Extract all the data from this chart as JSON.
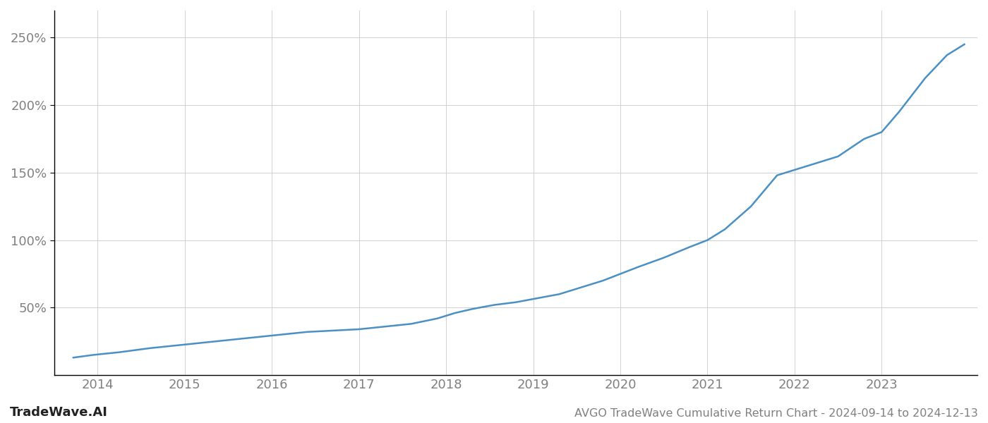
{
  "title": "AVGO TradeWave Cumulative Return Chart - 2024-09-14 to 2024-12-13",
  "watermark": "TradeWave.AI",
  "line_color": "#4a90c4",
  "line_width": 1.8,
  "background_color": "#ffffff",
  "grid_color": "#d0d0d0",
  "spine_color": "#000000",
  "x_years": [
    2014,
    2015,
    2016,
    2017,
    2018,
    2019,
    2020,
    2021,
    2022,
    2023
  ],
  "x_values": [
    2013.72,
    2013.95,
    2014.25,
    2014.6,
    2014.9,
    2015.2,
    2015.5,
    2015.8,
    2016.1,
    2016.4,
    2016.7,
    2017.0,
    2017.3,
    2017.6,
    2017.9,
    2018.1,
    2018.3,
    2018.55,
    2018.8,
    2019.05,
    2019.3,
    2019.55,
    2019.8,
    2020.0,
    2020.2,
    2020.5,
    2020.8,
    2021.0,
    2021.2,
    2021.5,
    2021.8,
    2022.0,
    2022.2,
    2022.5,
    2022.8,
    2023.0,
    2023.2,
    2023.5,
    2023.75,
    2023.95
  ],
  "y_values": [
    13,
    15,
    17,
    20,
    22,
    24,
    26,
    28,
    30,
    32,
    33,
    34,
    36,
    38,
    42,
    46,
    49,
    52,
    54,
    57,
    60,
    65,
    70,
    75,
    80,
    87,
    95,
    100,
    108,
    125,
    148,
    152,
    156,
    162,
    175,
    180,
    195,
    220,
    237,
    245
  ],
  "yticks": [
    50,
    100,
    150,
    200,
    250
  ],
  "ytick_labels": [
    "50%",
    "100%",
    "150%",
    "200%",
    "250%"
  ],
  "ylim": [
    0,
    270
  ],
  "xlim": [
    2013.5,
    2024.1
  ],
  "tick_fontsize": 13,
  "label_color": "#808080",
  "title_fontsize": 11.5,
  "watermark_fontsize": 13,
  "watermark_color": "#222222"
}
